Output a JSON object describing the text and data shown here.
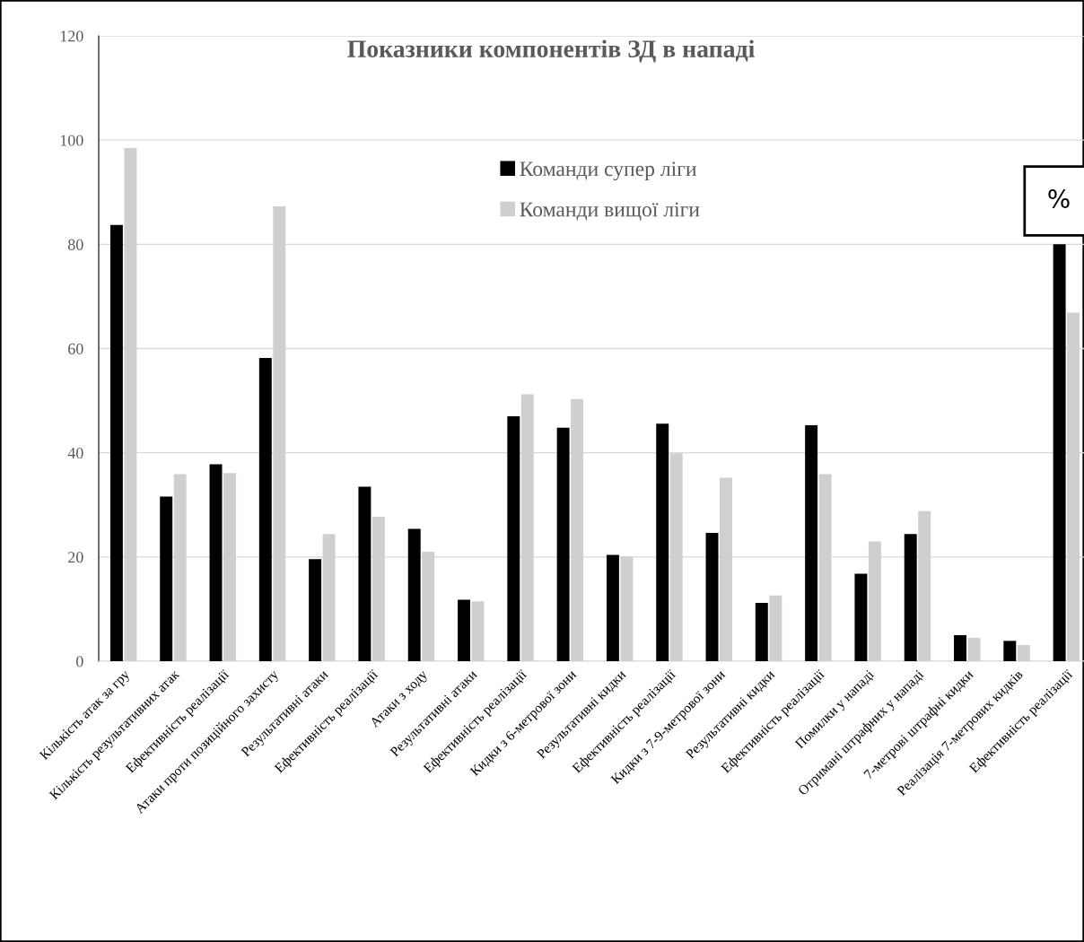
{
  "chart_data": {
    "type": "bar",
    "title": "Показники компонентів ЗД в нападі",
    "categories": [
      "Кількість атак за гру",
      "Кількість результативних атак",
      "Ефективність реалізації",
      "Атаки проти позиційного захисту",
      "Результативні атаки",
      "Ефективність реалізації",
      "Атаки з ходу",
      "Результативні атаки",
      "Ефективність реалізації",
      "Кидки з 6-метрової зони",
      "Результативні кидки",
      "Ефективність реалізації",
      "Кидки з 7-9-метрової зони",
      "Результативні кидки",
      "Ефективність реалізації",
      "Помилки у нападі",
      "Отримані штрафних у нападі",
      "7-метрові штрафні кидки",
      "Реалізація 7-метрових кидків",
      "Ефективність реалізації"
    ],
    "series": [
      {
        "name": "Команди супер ліги",
        "color": "#000000",
        "values": [
          83.7,
          31.6,
          37.8,
          58.2,
          19.6,
          33.5,
          25.4,
          11.8,
          47.0,
          44.8,
          20.4,
          45.6,
          24.6,
          11.2,
          45.3,
          16.8,
          24.4,
          5.0,
          3.9,
          80.0
        ]
      },
      {
        "name": "Команди вищої ліги",
        "color": "#d0cece",
        "values": [
          98.5,
          35.9,
          36.1,
          87.3,
          24.4,
          27.7,
          21.0,
          11.5,
          51.2,
          50.3,
          20.1,
          39.9,
          35.2,
          12.6,
          35.9,
          23.0,
          28.8,
          4.5,
          3.1,
          66.9
        ]
      }
    ],
    "ylim": [
      0,
      120
    ],
    "yticks": [
      0,
      20,
      40,
      60,
      80,
      100,
      120
    ],
    "grid": "y",
    "legend": "top",
    "annotations": [
      "%"
    ]
  }
}
